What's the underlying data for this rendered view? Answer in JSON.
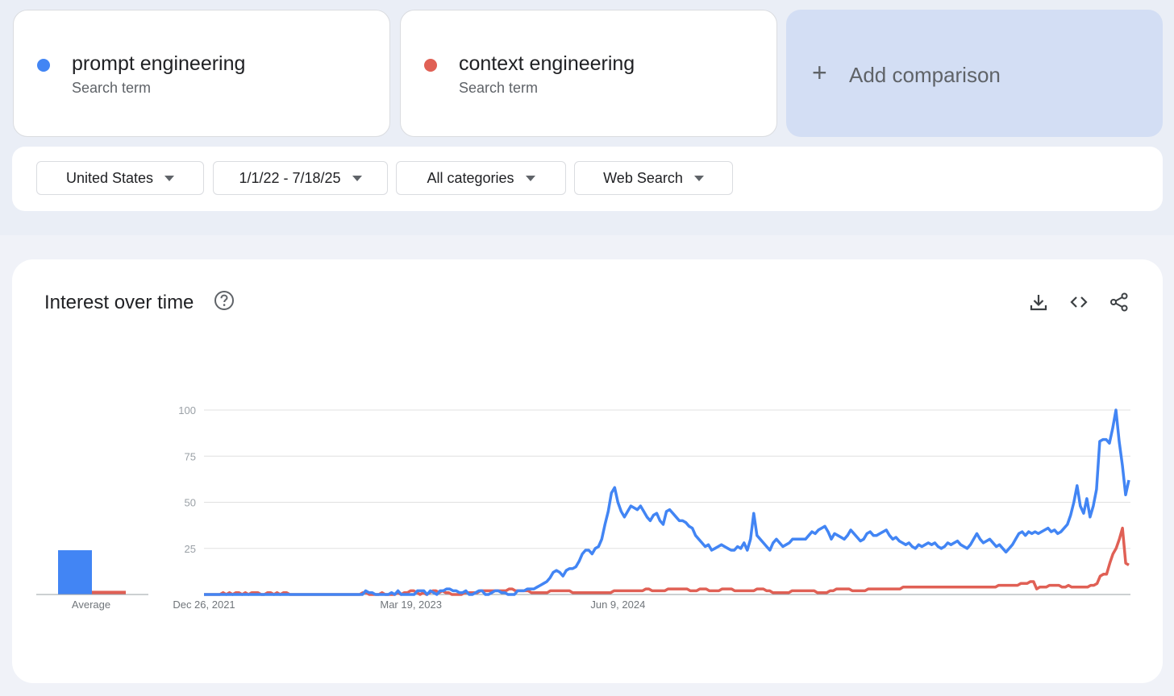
{
  "terms": [
    {
      "label": "prompt engineering",
      "sublabel": "Search term",
      "color": "#4285f4"
    },
    {
      "label": "context engineering",
      "sublabel": "Search term",
      "color": "#e06055"
    }
  ],
  "add_comparison": {
    "label": "Add comparison",
    "icon": "plus-icon"
  },
  "filters": {
    "region": "United States",
    "date_range": "1/1/22 - 7/18/25",
    "category": "All categories",
    "search_type": "Web Search"
  },
  "chart_header": {
    "title": "Interest over time",
    "icons": [
      "help-icon",
      "download-icon",
      "embed-code-icon",
      "share-icon"
    ]
  },
  "chart_data": {
    "type": "line",
    "title": "Interest over time",
    "ylim": [
      0,
      100
    ],
    "yticks": [
      "100",
      "75",
      "50",
      "25"
    ],
    "xtick_labels": [
      "Dec 26, 2021",
      "Mar 19, 2023",
      "Jun 9, 2024"
    ],
    "x_range": [
      "Dec 26, 2021",
      "Jul 18, 2025"
    ],
    "grid": true,
    "average": {
      "label": "Average",
      "values": {
        "prompt engineering": 24,
        "context engineering": 2
      }
    },
    "series": [
      {
        "name": "prompt engineering",
        "color": "#4285f4",
        "values": [
          0,
          0,
          0,
          0,
          0,
          0,
          0,
          0,
          0,
          0,
          0,
          0,
          0,
          0,
          0,
          0,
          0,
          0,
          0,
          0,
          0,
          0,
          0,
          0,
          0,
          0,
          0,
          0,
          0,
          0,
          0,
          0,
          0,
          0,
          0,
          0,
          0,
          0,
          0,
          0,
          0,
          0,
          0,
          0,
          0,
          0,
          0,
          0,
          0,
          0,
          2,
          1,
          1,
          0,
          0,
          0,
          0,
          0,
          1,
          0,
          2,
          0,
          0,
          0,
          0,
          0,
          2,
          2,
          2,
          0,
          2,
          1,
          0,
          2,
          2,
          3,
          3,
          2,
          2,
          1,
          1,
          2,
          0,
          0,
          1,
          2,
          2,
          0,
          0,
          1,
          2,
          2,
          1,
          1,
          0,
          0,
          0,
          2,
          2,
          2,
          3,
          3,
          3,
          4,
          5,
          6,
          7,
          9,
          12,
          13,
          12,
          10,
          13,
          14,
          14,
          15,
          18,
          22,
          24,
          24,
          22,
          25,
          26,
          30,
          38,
          45,
          55,
          58,
          50,
          45,
          42,
          45,
          48,
          47,
          46,
          48,
          45,
          42,
          40,
          43,
          44,
          40,
          38,
          45,
          46,
          44,
          42,
          40,
          40,
          39,
          37,
          36,
          32,
          30,
          28,
          26,
          27,
          24,
          25,
          26,
          27,
          26,
          25,
          24,
          24,
          26,
          25,
          28,
          24,
          30,
          44,
          32,
          30,
          28,
          26,
          24,
          28,
          30,
          28,
          26,
          27,
          28,
          30,
          30,
          30,
          30,
          30,
          32,
          34,
          33,
          35,
          36,
          37,
          34,
          30,
          33,
          32,
          31,
          30,
          32,
          35,
          33,
          31,
          29,
          30,
          33,
          34,
          32,
          32,
          33,
          34,
          35,
          32,
          30,
          31,
          29,
          28,
          27,
          28,
          26,
          25,
          27,
          26,
          27,
          28,
          27,
          28,
          26,
          25,
          26,
          28,
          27,
          28,
          29,
          27,
          26,
          25,
          27,
          30,
          33,
          30,
          28,
          29,
          30,
          28,
          26,
          27,
          25,
          23,
          25,
          27,
          30,
          33,
          34,
          32,
          34,
          33,
          34,
          33,
          34,
          35,
          36,
          34,
          35,
          33,
          34,
          36,
          38,
          43,
          50,
          59,
          48,
          44,
          52,
          42,
          48,
          57,
          83,
          84,
          84,
          82,
          90,
          100,
          83,
          70,
          54,
          62
        ]
      },
      {
        "name": "context engineering",
        "color": "#e06055",
        "values": [
          0,
          0,
          0,
          0,
          0,
          0,
          1,
          0,
          1,
          0,
          1,
          1,
          0,
          1,
          0,
          1,
          1,
          1,
          0,
          0,
          1,
          1,
          0,
          1,
          0,
          1,
          1,
          0,
          0,
          0,
          0,
          0,
          0,
          0,
          0,
          0,
          0,
          0,
          0,
          0,
          0,
          0,
          0,
          0,
          0,
          0,
          0,
          0,
          0,
          0,
          1,
          1,
          0,
          0,
          0,
          0,
          1,
          0,
          0,
          0,
          0,
          1,
          0,
          1,
          1,
          2,
          2,
          1,
          0,
          1,
          0,
          1,
          2,
          2,
          1,
          2,
          1,
          1,
          0,
          0,
          0,
          0,
          1,
          1,
          1,
          1,
          1,
          2,
          2,
          2,
          2,
          2,
          2,
          2,
          2,
          2,
          3,
          3,
          2,
          2,
          2,
          2,
          2,
          1,
          1,
          1,
          1,
          1,
          1,
          2,
          2,
          2,
          2,
          2,
          2,
          2,
          1,
          1,
          1,
          1,
          1,
          1,
          1,
          1,
          1,
          1,
          1,
          1,
          1,
          2,
          2,
          2,
          2,
          2,
          2,
          2,
          2,
          2,
          2,
          3,
          3,
          2,
          2,
          2,
          2,
          2,
          3,
          3,
          3,
          3,
          3,
          3,
          3,
          2,
          2,
          2,
          3,
          3,
          3,
          2,
          2,
          2,
          2,
          3,
          3,
          3,
          3,
          2,
          2,
          2,
          2,
          2,
          2,
          2,
          3,
          3,
          3,
          2,
          2,
          1,
          1,
          1,
          1,
          1,
          1,
          2,
          2,
          2,
          2,
          2,
          2,
          2,
          2,
          1,
          1,
          1,
          1,
          2,
          2,
          3,
          3,
          3,
          3,
          3,
          2,
          2,
          2,
          2,
          2,
          3,
          3,
          3,
          3,
          3,
          3,
          3,
          3,
          3,
          3,
          3,
          4,
          4,
          4,
          4,
          4,
          4,
          4,
          4,
          4,
          4,
          4,
          4,
          4,
          4,
          4,
          4,
          4,
          4,
          4,
          4,
          4,
          4,
          4,
          4,
          4,
          4,
          4,
          4,
          4,
          4,
          5,
          5,
          5,
          5,
          5,
          5,
          5,
          6,
          6,
          6,
          7,
          7,
          3,
          4,
          4,
          4,
          5,
          5,
          5,
          5,
          4,
          4,
          5,
          4,
          4,
          4,
          4,
          4,
          4,
          5,
          5,
          6,
          10,
          11,
          11,
          17,
          22,
          25,
          30,
          36,
          17,
          16
        ]
      }
    ]
  }
}
